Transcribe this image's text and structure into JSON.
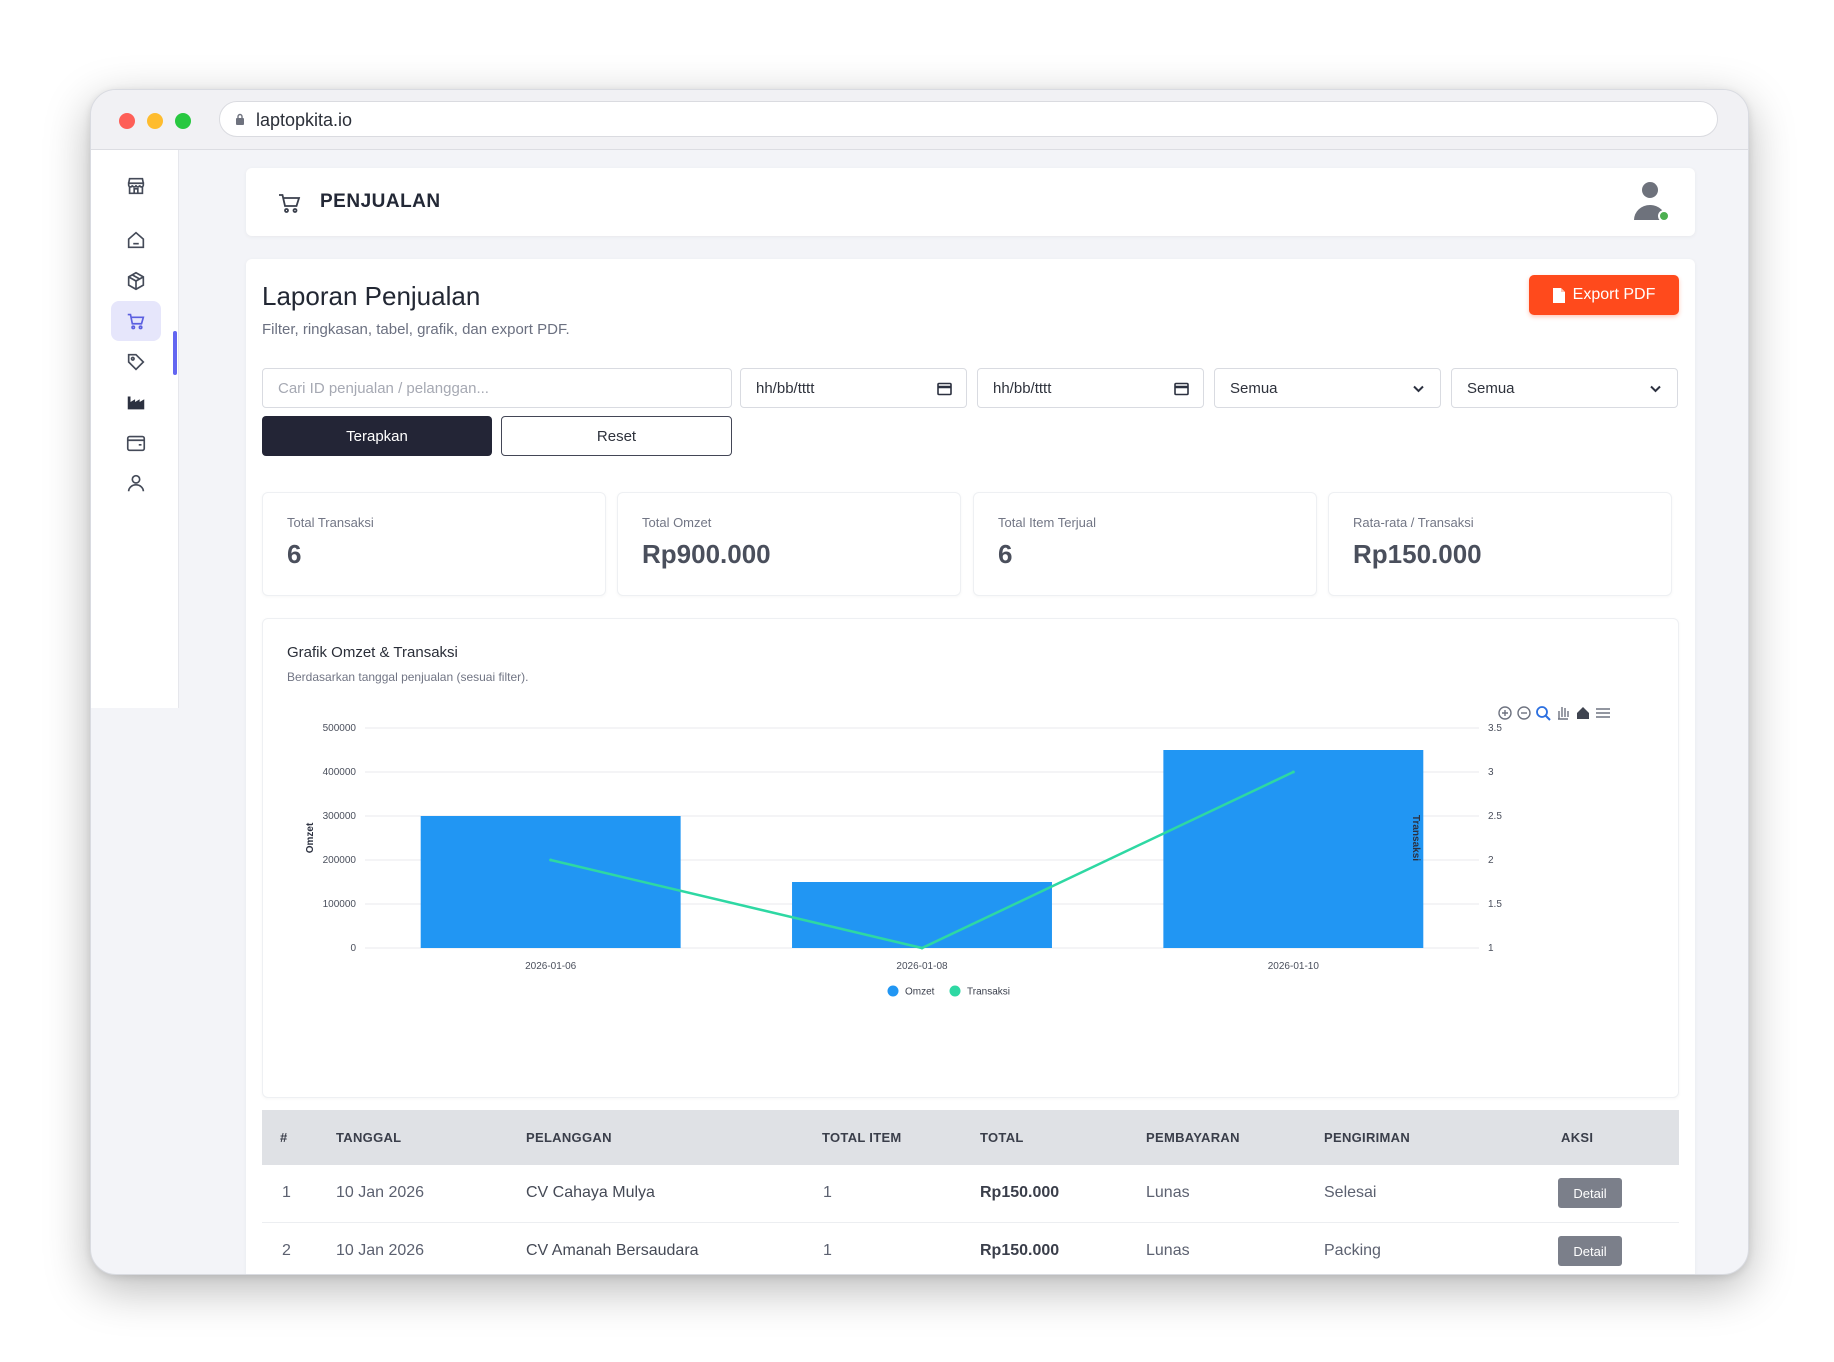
{
  "browser": {
    "url": "laptopkita.io"
  },
  "sidebar": {
    "items": [
      {
        "icon": "store-icon"
      },
      {
        "icon": "home-icon"
      },
      {
        "icon": "box-icon"
      },
      {
        "icon": "cart-icon",
        "active": true
      },
      {
        "icon": "tag-icon"
      },
      {
        "icon": "factory-icon"
      },
      {
        "icon": "wallet-icon"
      },
      {
        "icon": "user-icon"
      }
    ]
  },
  "header": {
    "title": "PENJUALAN"
  },
  "report": {
    "title": "Laporan Penjualan",
    "subtitle": "Filter, ringkasan, tabel, grafik, dan export PDF.",
    "export_label": "Export PDF"
  },
  "filters": {
    "search_placeholder": "Cari ID penjualan / pelanggan...",
    "date_from": "hh/bb/tttt",
    "date_to": "hh/bb/tttt",
    "select_1": "Semua",
    "select_2": "Semua",
    "apply_label": "Terapkan",
    "reset_label": "Reset"
  },
  "stats": [
    {
      "label": "Total Transaksi",
      "value": "6"
    },
    {
      "label": "Total Omzet",
      "value": "Rp900.000"
    },
    {
      "label": "Total Item Terjual",
      "value": "6"
    },
    {
      "label": "Rata-rata / Transaksi",
      "value": "Rp150.000"
    }
  ],
  "chart": {
    "title": "Grafik Omzet & Transaksi",
    "subtitle": "Berdasarkan tanggal penjualan (sesuai filter)."
  },
  "chart_data": {
    "type": "bar",
    "categories": [
      "2026-01-06",
      "2026-01-08",
      "2026-01-10"
    ],
    "series": [
      {
        "name": "Omzet",
        "type": "bar",
        "axis": "left",
        "color": "#2196f3",
        "values": [
          300000,
          150000,
          450000
        ]
      },
      {
        "name": "Transaksi",
        "type": "line",
        "axis": "right",
        "color": "#2ed8a3",
        "values": [
          2,
          1,
          3
        ]
      }
    ],
    "ylabel": "Omzet",
    "y2label": "Transaksi",
    "ylim": [
      0,
      500000
    ],
    "y2lim": [
      1,
      3.5
    ],
    "yticks": [
      "500000",
      "400000",
      "300000",
      "200000",
      "100000",
      "0"
    ],
    "y2ticks": [
      "3.5",
      "3",
      "2.5",
      "2",
      "1.5",
      "1"
    ],
    "grid": true,
    "legend": "bottom-center"
  },
  "table": {
    "columns": [
      "#",
      "TANGGAL",
      "PELANGGAN",
      "TOTAL ITEM",
      "TOTAL",
      "PEMBAYARAN",
      "PENGIRIMAN",
      "AKSI"
    ],
    "rows": [
      {
        "no": "1",
        "tanggal": "10 Jan 2026",
        "pelanggan": "CV Cahaya Mulya",
        "total_item": "1",
        "total": "Rp150.000",
        "pembayaran": "Lunas",
        "pengiriman": "Selesai",
        "aksi": "Detail"
      },
      {
        "no": "2",
        "tanggal": "10 Jan 2026",
        "pelanggan": "CV Amanah Bersaudara",
        "total_item": "1",
        "total": "Rp150.000",
        "pembayaran": "Lunas",
        "pengiriman": "Packing",
        "aksi": "Detail"
      }
    ]
  }
}
